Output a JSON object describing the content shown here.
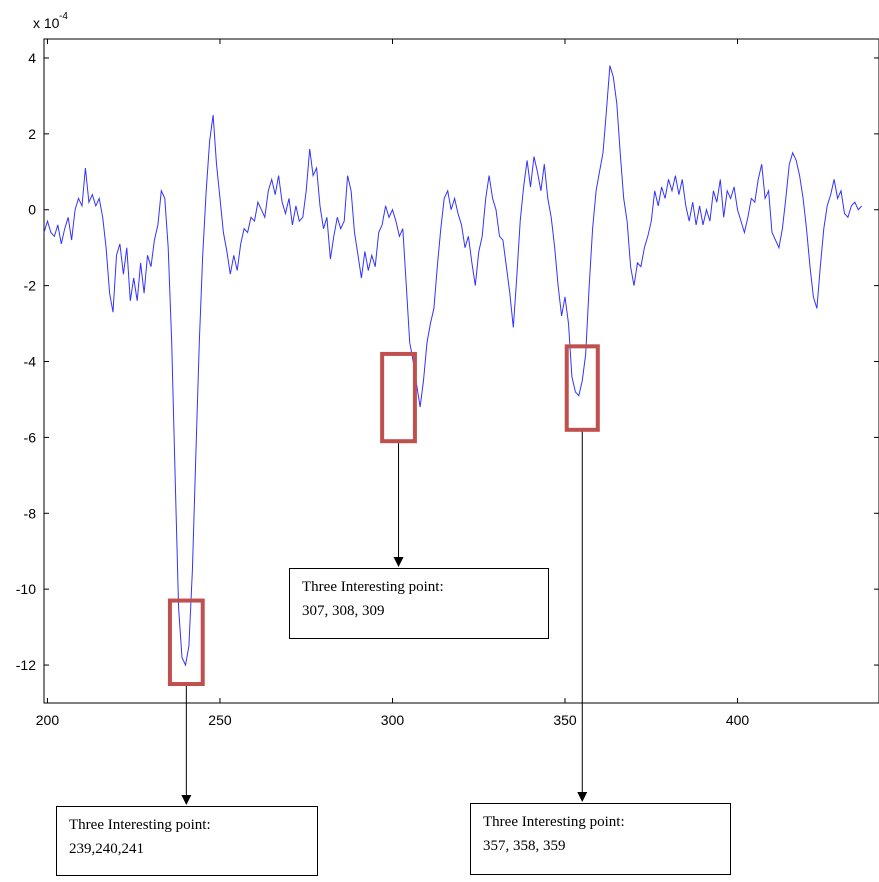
{
  "chart_data": {
    "type": "line",
    "title": "",
    "xlabel": "",
    "ylabel": "",
    "y_exponent_label": {
      "base": "x 10",
      "exp": "-4"
    },
    "xlim": [
      199,
      441
    ],
    "ylim": [
      -13,
      4.5
    ],
    "xticks": [
      200,
      250,
      300,
      350,
      400
    ],
    "yticks": [
      4,
      2,
      0,
      -2,
      -4,
      -6,
      -8,
      -10,
      -12
    ],
    "grid": false,
    "line_color": "#3333ff",
    "highlight_color": "#c0504d",
    "series": [
      {
        "values": [
          [
            199,
            -0.6
          ],
          [
            200,
            -0.3
          ],
          [
            201,
            -0.6
          ],
          [
            202,
            -0.7
          ],
          [
            203,
            -0.4
          ],
          [
            204,
            -0.9
          ],
          [
            205,
            -0.5
          ],
          [
            206,
            -0.2
          ],
          [
            207,
            -0.8
          ],
          [
            208,
            0.0
          ],
          [
            209,
            0.3
          ],
          [
            210,
            0.1
          ],
          [
            211,
            1.1
          ],
          [
            212,
            0.2
          ],
          [
            213,
            0.4
          ],
          [
            214,
            0.1
          ],
          [
            215,
            0.3
          ],
          [
            216,
            -0.2
          ],
          [
            217,
            -1.0
          ],
          [
            218,
            -2.2
          ],
          [
            219,
            -2.7
          ],
          [
            220,
            -1.2
          ],
          [
            221,
            -0.9
          ],
          [
            222,
            -1.7
          ],
          [
            223,
            -1.0
          ],
          [
            224,
            -2.4
          ],
          [
            225,
            -1.8
          ],
          [
            226,
            -2.4
          ],
          [
            227,
            -1.4
          ],
          [
            228,
            -2.2
          ],
          [
            229,
            -1.2
          ],
          [
            230,
            -1.5
          ],
          [
            231,
            -0.8
          ],
          [
            232,
            -0.4
          ],
          [
            233,
            0.5
          ],
          [
            234,
            0.3
          ],
          [
            235,
            -1.0
          ],
          [
            236,
            -3.5
          ],
          [
            237,
            -7.0
          ],
          [
            238,
            -10.5
          ],
          [
            239,
            -11.8
          ],
          [
            240,
            -12.0
          ],
          [
            241,
            -11.5
          ],
          [
            242,
            -9.5
          ],
          [
            243,
            -6.5
          ],
          [
            244,
            -3.5
          ],
          [
            245,
            -1.2
          ],
          [
            246,
            0.5
          ],
          [
            247,
            1.8
          ],
          [
            248,
            2.5
          ],
          [
            249,
            1.2
          ],
          [
            250,
            0.3
          ],
          [
            251,
            -0.6
          ],
          [
            252,
            -1.1
          ],
          [
            253,
            -1.7
          ],
          [
            254,
            -1.2
          ],
          [
            255,
            -1.6
          ],
          [
            256,
            -0.9
          ],
          [
            257,
            -0.5
          ],
          [
            258,
            -0.6
          ],
          [
            259,
            -0.2
          ],
          [
            260,
            -0.3
          ],
          [
            261,
            0.2
          ],
          [
            262,
            0.0
          ],
          [
            263,
            -0.2
          ],
          [
            264,
            0.5
          ],
          [
            265,
            0.8
          ],
          [
            266,
            0.4
          ],
          [
            267,
            0.9
          ],
          [
            268,
            0.2
          ],
          [
            269,
            -0.1
          ],
          [
            270,
            0.3
          ],
          [
            271,
            -0.4
          ],
          [
            272,
            0.1
          ],
          [
            273,
            -0.3
          ],
          [
            274,
            -0.2
          ],
          [
            275,
            0.5
          ],
          [
            276,
            1.6
          ],
          [
            277,
            0.9
          ],
          [
            278,
            1.1
          ],
          [
            279,
            0.1
          ],
          [
            280,
            -0.5
          ],
          [
            281,
            -0.2
          ],
          [
            282,
            -1.3
          ],
          [
            283,
            -0.7
          ],
          [
            284,
            -0.2
          ],
          [
            285,
            -0.5
          ],
          [
            286,
            -0.3
          ],
          [
            287,
            0.9
          ],
          [
            288,
            0.5
          ],
          [
            289,
            -0.6
          ],
          [
            290,
            -1.2
          ],
          [
            291,
            -1.8
          ],
          [
            292,
            -1.1
          ],
          [
            293,
            -1.6
          ],
          [
            294,
            -1.2
          ],
          [
            295,
            -1.5
          ],
          [
            296,
            -0.6
          ],
          [
            297,
            -0.4
          ],
          [
            298,
            0.1
          ],
          [
            299,
            -0.2
          ],
          [
            300,
            0.0
          ],
          [
            301,
            -0.3
          ],
          [
            302,
            -0.7
          ],
          [
            303,
            -0.5
          ],
          [
            304,
            -2.0
          ],
          [
            305,
            -3.5
          ],
          [
            306,
            -4.0
          ],
          [
            307,
            -4.6
          ],
          [
            308,
            -5.2
          ],
          [
            309,
            -4.5
          ],
          [
            310,
            -3.5
          ],
          [
            311,
            -3.0
          ],
          [
            312,
            -2.6
          ],
          [
            313,
            -1.5
          ],
          [
            314,
            -0.5
          ],
          [
            315,
            0.3
          ],
          [
            316,
            0.5
          ],
          [
            317,
            0.0
          ],
          [
            318,
            0.3
          ],
          [
            319,
            -0.1
          ],
          [
            320,
            -0.4
          ],
          [
            321,
            -1.0
          ],
          [
            322,
            -0.7
          ],
          [
            323,
            -1.4
          ],
          [
            324,
            -2.0
          ],
          [
            325,
            -1.1
          ],
          [
            326,
            -0.7
          ],
          [
            327,
            0.3
          ],
          [
            328,
            0.9
          ],
          [
            329,
            0.3
          ],
          [
            330,
            0.0
          ],
          [
            331,
            -0.7
          ],
          [
            332,
            -0.8
          ],
          [
            333,
            -1.5
          ],
          [
            334,
            -2.2
          ],
          [
            335,
            -3.1
          ],
          [
            336,
            -1.8
          ],
          [
            337,
            -0.3
          ],
          [
            338,
            0.6
          ],
          [
            339,
            1.3
          ],
          [
            340,
            0.6
          ],
          [
            341,
            1.4
          ],
          [
            342,
            1.0
          ],
          [
            343,
            0.5
          ],
          [
            344,
            1.2
          ],
          [
            345,
            0.3
          ],
          [
            346,
            -0.2
          ],
          [
            347,
            -1.0
          ],
          [
            348,
            -2.0
          ],
          [
            349,
            -2.8
          ],
          [
            350,
            -2.3
          ],
          [
            351,
            -3.0
          ],
          [
            352,
            -4.4
          ],
          [
            353,
            -4.8
          ],
          [
            354,
            -4.9
          ],
          [
            355,
            -4.5
          ],
          [
            356,
            -3.8
          ],
          [
            357,
            -2.0
          ],
          [
            358,
            -0.5
          ],
          [
            359,
            0.5
          ],
          [
            360,
            1.0
          ],
          [
            361,
            1.5
          ],
          [
            362,
            2.6
          ],
          [
            363,
            3.8
          ],
          [
            364,
            3.5
          ],
          [
            365,
            2.8
          ],
          [
            366,
            1.5
          ],
          [
            367,
            0.3
          ],
          [
            368,
            -0.3
          ],
          [
            369,
            -1.5
          ],
          [
            370,
            -2.0
          ],
          [
            371,
            -1.4
          ],
          [
            372,
            -1.5
          ],
          [
            373,
            -1.0
          ],
          [
            374,
            -0.7
          ],
          [
            375,
            -0.3
          ],
          [
            376,
            0.5
          ],
          [
            377,
            0.1
          ],
          [
            378,
            0.6
          ],
          [
            379,
            0.3
          ],
          [
            380,
            0.8
          ],
          [
            381,
            0.5
          ],
          [
            382,
            0.9
          ],
          [
            383,
            0.4
          ],
          [
            384,
            0.8
          ],
          [
            385,
            0.1
          ],
          [
            386,
            -0.3
          ],
          [
            387,
            0.2
          ],
          [
            388,
            -0.4
          ],
          [
            389,
            0.1
          ],
          [
            390,
            -0.4
          ],
          [
            391,
            0.0
          ],
          [
            392,
            -0.3
          ],
          [
            393,
            0.5
          ],
          [
            394,
            0.2
          ],
          [
            395,
            0.8
          ],
          [
            396,
            -0.2
          ],
          [
            397,
            0.5
          ],
          [
            398,
            0.3
          ],
          [
            399,
            0.6
          ],
          [
            400,
            0.0
          ],
          [
            401,
            -0.3
          ],
          [
            402,
            -0.6
          ],
          [
            403,
            -0.2
          ],
          [
            404,
            0.3
          ],
          [
            405,
            0.2
          ],
          [
            406,
            0.8
          ],
          [
            407,
            1.2
          ],
          [
            408,
            0.3
          ],
          [
            409,
            0.5
          ],
          [
            410,
            -0.6
          ],
          [
            411,
            -0.8
          ],
          [
            412,
            -1.0
          ],
          [
            413,
            -0.5
          ],
          [
            414,
            0.3
          ],
          [
            415,
            1.2
          ],
          [
            416,
            1.5
          ],
          [
            417,
            1.3
          ],
          [
            418,
            0.9
          ],
          [
            419,
            0.3
          ],
          [
            420,
            -0.5
          ],
          [
            421,
            -1.5
          ],
          [
            422,
            -2.3
          ],
          [
            423,
            -2.6
          ],
          [
            424,
            -1.5
          ],
          [
            425,
            -0.5
          ],
          [
            426,
            0.1
          ],
          [
            427,
            0.4
          ],
          [
            428,
            0.8
          ],
          [
            429,
            0.3
          ],
          [
            430,
            0.5
          ],
          [
            431,
            -0.1
          ],
          [
            432,
            -0.2
          ],
          [
            433,
            0.1
          ],
          [
            434,
            0.2
          ],
          [
            435,
            0.0
          ],
          [
            436,
            0.1
          ]
        ]
      }
    ],
    "highlight_regions": [
      {
        "x_range": [
          235.5,
          245
        ],
        "y_range": [
          -10.3,
          -12.5
        ]
      },
      {
        "x_range": [
          297,
          306.5
        ],
        "y_range": [
          -3.8,
          -6.1
        ]
      },
      {
        "x_range": [
          350.5,
          359.5
        ],
        "y_range": [
          -3.6,
          -5.8
        ]
      }
    ]
  },
  "annotations": [
    {
      "line1": "Three Interesting point:",
      "line2": "239,240,241"
    },
    {
      "line1": "Three Interesting point:",
      "line2": "307, 308, 309"
    },
    {
      "line1": "Three Interesting point:",
      "line2": "357, 358, 359"
    }
  ]
}
